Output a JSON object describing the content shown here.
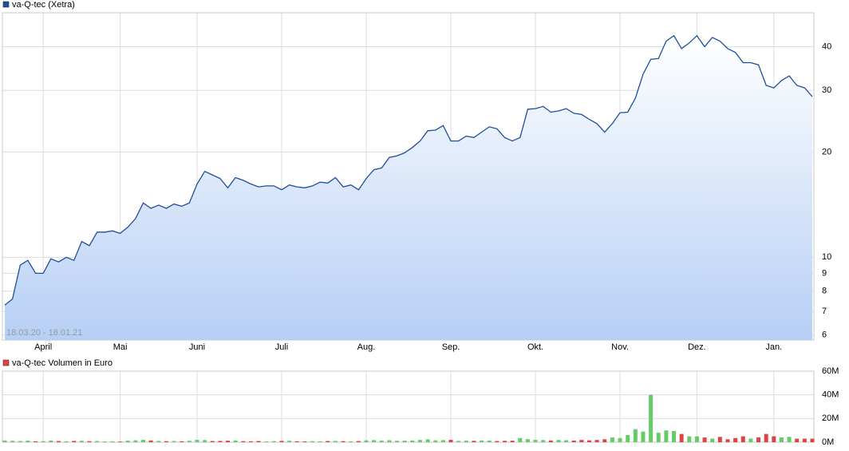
{
  "chart_data": [
    {
      "type": "line",
      "log_scale": true,
      "grid": true,
      "annotation": "18.03.20 - 18.01.21",
      "categories": [
        null,
        null,
        null,
        null,
        null,
        "April",
        null,
        null,
        null,
        null,
        null,
        null,
        null,
        null,
        null,
        "Mai",
        null,
        null,
        null,
        null,
        null,
        null,
        null,
        null,
        null,
        "Juni",
        null,
        null,
        null,
        null,
        null,
        null,
        null,
        null,
        null,
        null,
        "Juli",
        null,
        null,
        null,
        null,
        null,
        null,
        null,
        null,
        null,
        null,
        "Aug.",
        null,
        null,
        null,
        null,
        null,
        null,
        null,
        null,
        null,
        null,
        "Sep.",
        null,
        null,
        null,
        null,
        null,
        null,
        null,
        null,
        null,
        null,
        "Okt.",
        null,
        null,
        null,
        null,
        null,
        null,
        null,
        null,
        null,
        null,
        "Nov.",
        null,
        null,
        null,
        null,
        null,
        null,
        null,
        null,
        null,
        "Dez.",
        null,
        null,
        null,
        null,
        null,
        null,
        null,
        null,
        null,
        "Jan.",
        null,
        null,
        null,
        null,
        null
      ],
      "series": [
        {
          "name": "va-Q-tec (Xetra)",
          "color": "#1f4e9c",
          "values": [
            7.3,
            7.6,
            9.5,
            9.8,
            9.0,
            9.0,
            9.9,
            9.7,
            10.0,
            9.8,
            11.1,
            10.8,
            11.8,
            11.8,
            11.9,
            11.7,
            12.2,
            12.9,
            14.3,
            13.8,
            14.1,
            13.8,
            14.2,
            14.0,
            14.3,
            16.2,
            17.6,
            17.2,
            16.8,
            15.8,
            16.9,
            16.6,
            16.2,
            15.9,
            16.0,
            16.0,
            15.6,
            16.1,
            15.9,
            15.8,
            16.0,
            16.4,
            16.3,
            16.9,
            15.9,
            16.1,
            15.6,
            16.8,
            17.8,
            18.0,
            19.3,
            19.5,
            19.9,
            20.6,
            21.5,
            23.0,
            23.1,
            23.8,
            21.5,
            21.5,
            22.2,
            22.0,
            22.8,
            23.6,
            23.3,
            22.0,
            21.5,
            22.0,
            26.5,
            26.6,
            27.0,
            26.0,
            26.2,
            26.6,
            25.8,
            25.6,
            24.8,
            24.1,
            22.8,
            24.1,
            25.9,
            26.0,
            28.5,
            33.4,
            36.8,
            37.0,
            41.5,
            43.0,
            39.5,
            41.0,
            43.0,
            40.0,
            42.5,
            41.5,
            39.5,
            38.5,
            36.0,
            36.0,
            35.5,
            31.0,
            30.5,
            32.0,
            33.0,
            31.0,
            30.5,
            28.8
          ]
        }
      ],
      "ylim": [
        5.8,
        50
      ],
      "yticks": [
        6,
        7,
        8,
        9,
        10,
        20,
        30,
        40
      ]
    },
    {
      "type": "bar",
      "grid": true,
      "up_color": "#66cc66",
      "series": [
        {
          "name": "va-Q-tec Volumen in Euro",
          "color": "#dd4444",
          "values": [
            1500000,
            1200000,
            1000000,
            1300000,
            800000,
            900000,
            1400000,
            1000000,
            800000,
            1100000,
            1200000,
            900000,
            1000000,
            700000,
            800000,
            600000,
            1300000,
            1600000,
            2000000,
            1500000,
            1100000,
            900000,
            1000000,
            800000,
            1200000,
            2000000,
            1800000,
            1000000,
            1100000,
            1300000,
            1500000,
            900000,
            800000,
            1000000,
            700000,
            900000,
            1100000,
            1200000,
            800000,
            700000,
            900000,
            800000,
            1000000,
            1100000,
            900000,
            800000,
            1000000,
            1600000,
            1800000,
            1400000,
            1700000,
            1200000,
            1300000,
            1500000,
            1900000,
            2400000,
            1600000,
            1800000,
            2000000,
            1100000,
            1300000,
            1200000,
            1500000,
            1400000,
            1000000,
            1200000,
            1300000,
            3500000,
            2600000,
            2000000,
            1800000,
            1500000,
            1900000,
            1700000,
            1400000,
            1900000,
            1600000,
            1900000,
            2500000,
            4000000,
            3500000,
            6000000,
            11000000,
            9000000,
            40000000,
            8000000,
            10000000,
            9500000,
            7000000,
            5000000,
            5000000,
            4000000,
            3000000,
            4500000,
            2500000,
            3500000,
            5000000,
            3000000,
            4000000,
            7000000,
            5000000,
            4000000,
            4500000,
            3000000,
            3000000,
            3000000
          ]
        }
      ],
      "ylim": [
        0,
        60000000
      ],
      "yticks": [
        {
          "value": 0,
          "label": "0M"
        },
        {
          "value": 20000000,
          "label": "20M"
        },
        {
          "value": 40000000,
          "label": "40M"
        },
        {
          "value": 60000000,
          "label": "60M"
        }
      ]
    }
  ]
}
